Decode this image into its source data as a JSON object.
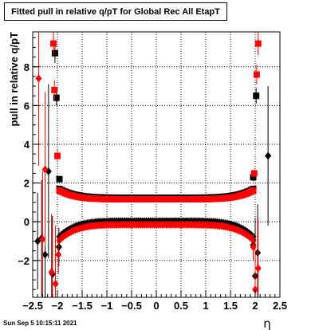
{
  "canvas": {
    "title": "Fitted pull in relative q/pT for Global Rec All EtapT",
    "timestamp": "Sun Sep  5 10:15:11 2021"
  },
  "chart_data": {
    "type": "scatter",
    "title": "Fitted pull in relative q/pT for Global Rec All EtapT",
    "xlabel": "η",
    "ylabel": "pull in relative q/pT",
    "xlim": [
      -2.5,
      2.5
    ],
    "ylim": [
      -3.9,
      9.8
    ],
    "xticks": [
      -2.5,
      -2,
      -1.5,
      -1,
      -0.5,
      0,
      0.5,
      1,
      1.5,
      2,
      2.5
    ],
    "xtick_labels": [
      "−2.5",
      "−2",
      "−1.5",
      "−1",
      "−0.5",
      "0",
      "0.5",
      "1",
      "1.5",
      "2",
      "2.5"
    ],
    "yticks": [
      -2,
      0,
      2,
      4,
      6,
      8
    ],
    "ytick_labels": [
      "−2",
      "0",
      "2",
      "4",
      "6",
      "8"
    ],
    "grid": true,
    "central_region": {
      "eta_min": -1.96,
      "eta_max": 1.96,
      "step": 0.04,
      "upper_center": 1.2,
      "upper_edge": 1.65,
      "lower_center": 0.05,
      "lower_edge": -0.75
    },
    "series": [
      {
        "color": "#000000",
        "marker": "square",
        "x": [
          -2.05,
          -2.02,
          -1.96,
          1.96,
          2.02
        ],
        "y": [
          8.7,
          6.4,
          2.2,
          2.3,
          6.5
        ],
        "err": [
          0.5,
          0.4,
          0.15,
          0.2,
          0.4
        ]
      },
      {
        "color": "#ff0000",
        "marker": "square",
        "x": [
          -2.08,
          -2.06,
          -2.0,
          1.98,
          2.03,
          2.06
        ],
        "y": [
          9.2,
          6.8,
          3.4,
          2.5,
          7.6,
          9.2
        ],
        "err": [
          0.6,
          0.5,
          0.3,
          0.2,
          0.5,
          0.6
        ]
      },
      {
        "color": "#000000",
        "marker": "diamond",
        "x": [
          -2.4,
          -2.32,
          -2.25,
          -2.18,
          -2.1,
          -1.97,
          1.96,
          2.0,
          2.05,
          2.26
        ],
        "y": [
          -1.0,
          -0.85,
          -1.7,
          2.6,
          -2.7,
          -1.3,
          -1.2,
          -2.8,
          -1.6,
          3.4
        ],
        "err": [
          2.5,
          3.0,
          3.5,
          4.5,
          3.0,
          1.0,
          0.6,
          3.0,
          2.5,
          3.6
        ]
      },
      {
        "color": "#ff0000",
        "marker": "diamond",
        "x": [
          -2.38,
          -2.3,
          -2.25,
          -2.12,
          -2.04,
          -1.98,
          1.96,
          2.0,
          2.06
        ],
        "y": [
          7.4,
          -0.9,
          2.7,
          -2.6,
          -3.2,
          -1.7,
          -1.3,
          -3.5,
          -2.4
        ],
        "err": [
          4.5,
          3.5,
          4.0,
          3.0,
          3.0,
          1.0,
          0.7,
          2.5,
          2.5
        ]
      }
    ]
  }
}
